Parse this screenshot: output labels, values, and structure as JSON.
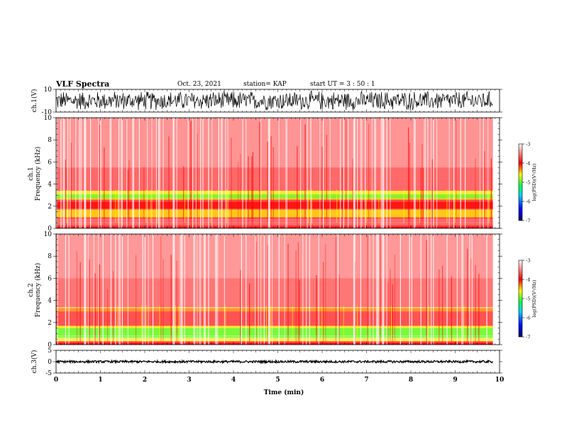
{
  "header": {
    "title": "VLF Spectra",
    "date": "Oct. 23, 2021",
    "station": "station= KAP",
    "start": "start  UT =   3  : 50 : 1"
  },
  "chart_data": [
    {
      "type": "line",
      "panel": "ch1-waveform",
      "ylabel": "ch.1(V)",
      "ylim": [
        -10,
        10
      ],
      "ytick_labels": [
        "10",
        "-10"
      ],
      "color": "#000000"
    },
    {
      "type": "heatmap",
      "panel": "ch1-spectrogram",
      "ylabel_top": "ch.1",
      "ylabel": "Frequency  (kHz)",
      "ylim": [
        0,
        10
      ],
      "yticks": [
        0,
        2,
        4,
        6,
        8,
        10
      ],
      "ytick_labels": [
        "0",
        "2",
        "4",
        "6",
        "8",
        "10"
      ],
      "colorbar": {
        "label": "log(PSD)(V²/Hz)",
        "range": [
          -7,
          -3
        ],
        "ticks": [
          -7,
          -6,
          -5,
          -4,
          -3
        ],
        "tick_labels": [
          "-7",
          "-6",
          "-5",
          "-4",
          "-3"
        ],
        "colors": [
          "#000060",
          "#0000ff",
          "#00c8ff",
          "#00ff50",
          "#ffff00",
          "#ff0000",
          "#ffffff"
        ]
      }
    },
    {
      "type": "heatmap",
      "panel": "ch2-spectrogram",
      "ylabel_top": "ch.2",
      "ylabel": "Frequency  (kHz)",
      "ylim": [
        0,
        10
      ],
      "yticks": [
        0,
        2,
        4,
        6,
        8,
        10
      ],
      "ytick_labels": [
        "0",
        "2",
        "4",
        "6",
        "8",
        "10"
      ],
      "colorbar": {
        "label": "log(PSD)(V²/Hz)",
        "range": [
          -7,
          -3
        ],
        "ticks": [
          -7,
          -6,
          -5,
          -4,
          -3
        ],
        "tick_labels": [
          "-7",
          "-6",
          "-5",
          "-4",
          "-3"
        ],
        "colors": [
          "#000060",
          "#0000ff",
          "#00c8ff",
          "#00ff50",
          "#ffff00",
          "#ff0000",
          "#ffffff"
        ]
      }
    },
    {
      "type": "line",
      "panel": "ch3-waveform",
      "ylabel": "ch.3(V)",
      "ylim": [
        -5,
        5
      ],
      "ytick_labels": [
        "5",
        "0",
        "-5"
      ],
      "color": "#000000"
    }
  ],
  "xaxis": {
    "label": "Time  (min)",
    "range": [
      0,
      10
    ],
    "ticks": [
      0,
      1,
      2,
      3,
      4,
      5,
      6,
      7,
      8,
      9,
      10
    ],
    "tick_labels": [
      "0",
      "1",
      "2",
      "3",
      "4",
      "5",
      "6",
      "7",
      "8",
      "9",
      "10"
    ],
    "data_end": 9.85
  }
}
